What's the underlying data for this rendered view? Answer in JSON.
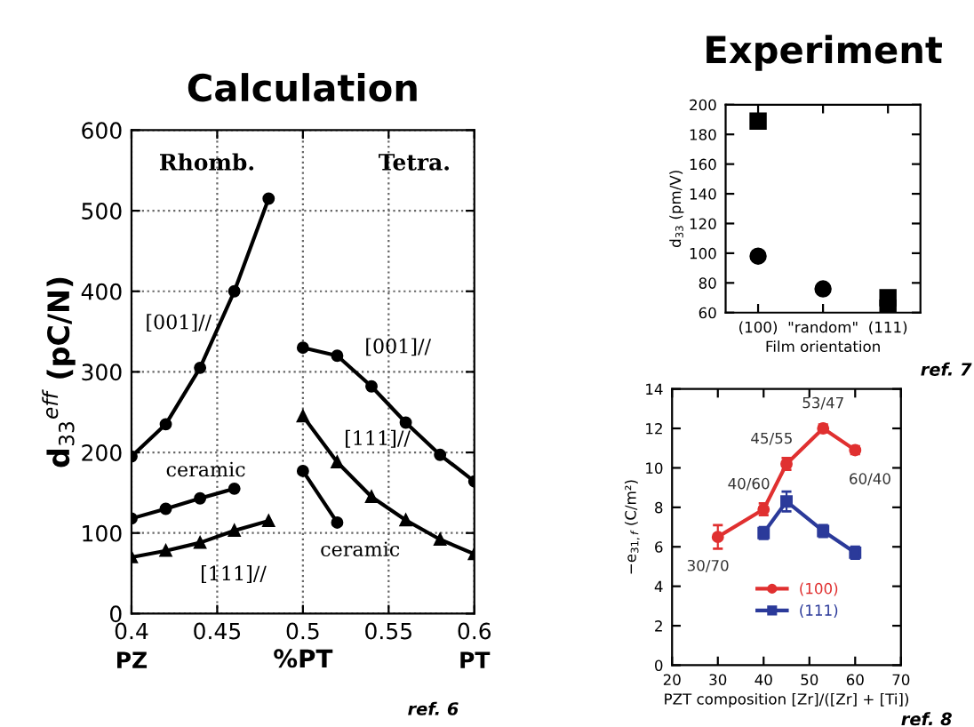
{
  "chart_data": [
    {
      "type": "line",
      "title": "Calculation",
      "ylabel": "d$_{33}$$^{eff}$ (pC/N)",
      "xlabel": "%PT",
      "xlim": [
        0.4,
        0.6
      ],
      "xticks": [
        0.4,
        0.45,
        0.5,
        0.55,
        0.6
      ],
      "ylim": [
        0,
        600
      ],
      "yticks": [
        0,
        100,
        200,
        300,
        400,
        500,
        600
      ],
      "grid": true,
      "series": [
        {
          "color": "#000000",
          "marker": "circle",
          "x": [
            0.4,
            0.42,
            0.44,
            0.46,
            0.48
          ],
          "values": [
            195,
            235,
            305,
            400,
            515
          ]
        },
        {
          "color": "#000000",
          "marker": "circle",
          "x": [
            0.4,
            0.42,
            0.44,
            0.46
          ],
          "values": [
            118,
            130,
            143,
            155
          ]
        },
        {
          "color": "#000000",
          "marker": "triangle",
          "x": [
            0.4,
            0.42,
            0.44,
            0.46,
            0.48
          ],
          "values": [
            70,
            78,
            88,
            103,
            115
          ]
        },
        {
          "color": "#000000",
          "marker": "circle",
          "x": [
            0.5,
            0.52,
            0.54,
            0.56,
            0.58,
            0.6
          ],
          "values": [
            330,
            320,
            282,
            237,
            197,
            164
          ]
        },
        {
          "color": "#000000",
          "marker": "triangle",
          "x": [
            0.5,
            0.52,
            0.54,
            0.56,
            0.58,
            0.6
          ],
          "values": [
            245,
            188,
            145,
            116,
            92,
            74
          ]
        },
        {
          "color": "#000000",
          "marker": "circle",
          "x": [
            0.5,
            0.52
          ],
          "values": [
            177,
            113
          ]
        }
      ],
      "annotations": [
        "Rhomb.",
        "Tetra.",
        "PZ",
        "PT",
        "ref. 6",
        "[001]//",
        "ceramic",
        "[111]//",
        "[001]//",
        "[111]//",
        "ceramic"
      ]
    },
    {
      "type": "scatter",
      "title": "Experiment",
      "ylabel": "d$_{33}$ (pm/V)",
      "xlabel": "Film orientation",
      "categories": [
        "(100)",
        "\"random\"",
        "(111)"
      ],
      "ylim": [
        60,
        200
      ],
      "yticks": [
        60,
        80,
        100,
        120,
        140,
        160,
        180,
        200
      ],
      "grid": false,
      "series": [
        {
          "color": "#000000",
          "marker": "square",
          "values": [
            189,
            null,
            70
          ]
        },
        {
          "color": "#000000",
          "marker": "circle",
          "values": [
            98,
            76,
            null
          ]
        },
        {
          "color": "#000000",
          "marker": "square",
          "values": [
            null,
            null,
            63
          ]
        }
      ],
      "annotations": [
        "ref. 7"
      ]
    },
    {
      "type": "line",
      "ylabel": "−e$_{31,f}$ (C/m²)",
      "xlabel": "PZT composition [Zr]/([Zr] + [Ti])",
      "xlim": [
        20,
        70
      ],
      "xticks": [
        20,
        30,
        40,
        50,
        60,
        70
      ],
      "ylim": [
        0,
        14
      ],
      "yticks": [
        0,
        2,
        4,
        6,
        8,
        10,
        12,
        14
      ],
      "grid": false,
      "legend": "bottom",
      "series": [
        {
          "name": "(100)",
          "color": "#e03030",
          "marker": "circle",
          "x": [
            30,
            40,
            45,
            53,
            60
          ],
          "values": [
            6.5,
            7.9,
            10.2,
            12.0,
            10.9
          ],
          "errors": [
            0.6,
            0.3,
            0.3,
            0.2,
            0.2
          ]
        },
        {
          "name": "(111)",
          "color": "#2b3a9a",
          "marker": "square",
          "x": [
            40,
            45,
            53,
            60
          ],
          "values": [
            6.7,
            8.3,
            6.8,
            5.7
          ],
          "errors": [
            0.3,
            0.5,
            0.3,
            0.3
          ]
        }
      ],
      "annotations": [
        {
          "text": "30/70",
          "x": 30,
          "y": 6.5
        },
        {
          "text": "40/60",
          "x": 40,
          "y": 7.9
        },
        {
          "text": "45/55",
          "x": 45,
          "y": 10.2
        },
        {
          "text": "53/47",
          "x": 53,
          "y": 12.0
        },
        {
          "text": "60/40",
          "x": 60,
          "y": 10.9
        },
        "ref. 8"
      ]
    }
  ]
}
